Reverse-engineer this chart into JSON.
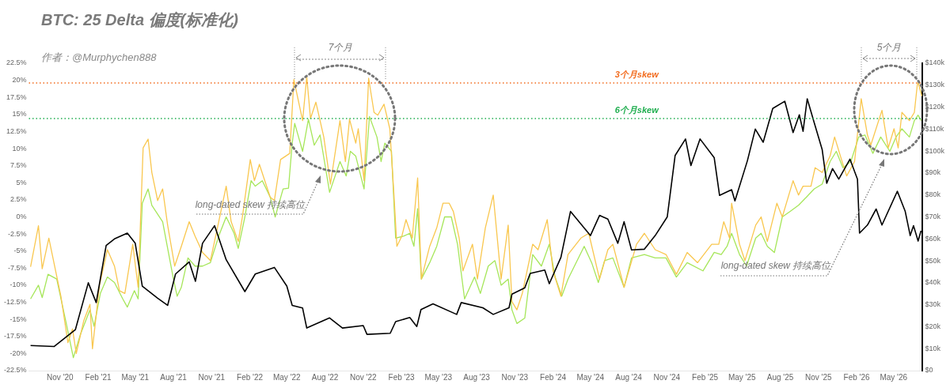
{
  "chart_data": {
    "type": "line",
    "title": "BTC: 25 Delta 偏度(标准化)",
    "subtitle": "作者：@Murphychen888",
    "xlim": [
      "2020-08-18",
      "2026-07-10"
    ],
    "xticks": [
      {
        "value": "2020-11-01",
        "label": "Nov '20"
      },
      {
        "value": "2021-02-01",
        "label": "Feb '21"
      },
      {
        "value": "2021-05-01",
        "label": "May '21"
      },
      {
        "value": "2021-08-01",
        "label": "Aug '21"
      },
      {
        "value": "2021-11-01",
        "label": "Nov '21"
      },
      {
        "value": "2022-02-01",
        "label": "Feb '22"
      },
      {
        "value": "2022-05-01",
        "label": "May '22"
      },
      {
        "value": "2022-08-01",
        "label": "Aug '22"
      },
      {
        "value": "2022-11-01",
        "label": "Nov '22"
      },
      {
        "value": "2023-02-01",
        "label": "Feb '23"
      },
      {
        "value": "2023-05-01",
        "label": "May '23"
      },
      {
        "value": "2023-08-01",
        "label": "Aug '23"
      },
      {
        "value": "2023-11-01",
        "label": "Nov '23"
      },
      {
        "value": "2024-02-01",
        "label": "Feb '24"
      },
      {
        "value": "2024-05-01",
        "label": "May '24"
      },
      {
        "value": "2024-08-01",
        "label": "Aug '24"
      },
      {
        "value": "2024-11-01",
        "label": "Nov '24"
      },
      {
        "value": "2025-02-01",
        "label": "Feb '25"
      },
      {
        "value": "2025-05-01",
        "label": "May '25"
      },
      {
        "value": "2025-08-01",
        "label": "Aug '25"
      },
      {
        "value": "2025-11-01",
        "label": "Nov '25"
      },
      {
        "value": "2026-02-01",
        "label": "Feb '26"
      },
      {
        "value": "2026-05-01",
        "label": "May '26"
      }
    ],
    "ylim": [
      -22.5,
      22.5
    ],
    "yticks": [
      {
        "value": -22.5,
        "label": "-22.5%"
      },
      {
        "value": -20,
        "label": "-20%"
      },
      {
        "value": -17.5,
        "label": "-17.5%"
      },
      {
        "value": -15,
        "label": "-15%"
      },
      {
        "value": -12.5,
        "label": "-12.5%"
      },
      {
        "value": -10,
        "label": "-10%"
      },
      {
        "value": -7.5,
        "label": "-7.5%"
      },
      {
        "value": -5,
        "label": "-5%"
      },
      {
        "value": -2.5,
        "label": "-2.5%"
      },
      {
        "value": 0,
        "label": "0%"
      },
      {
        "value": 2.5,
        "label": "2.5%"
      },
      {
        "value": 5,
        "label": "5%"
      },
      {
        "value": 7.5,
        "label": "7.5%"
      },
      {
        "value": 10,
        "label": "10%"
      },
      {
        "value": 12.5,
        "label": "12.5%"
      },
      {
        "value": 15,
        "label": "15%"
      },
      {
        "value": 17.5,
        "label": "17.5%"
      },
      {
        "value": 20,
        "label": "20%"
      },
      {
        "value": 22.5,
        "label": "22.5%"
      }
    ],
    "y2lim": [
      0,
      140
    ],
    "y2ticks": [
      {
        "value": 0,
        "label": "$0"
      },
      {
        "value": 10,
        "label": "$10k"
      },
      {
        "value": 20,
        "label": "$20k"
      },
      {
        "value": 30,
        "label": "$30k"
      },
      {
        "value": 40,
        "label": "$40k"
      },
      {
        "value": 50,
        "label": "$50k"
      },
      {
        "value": 60,
        "label": "$60k"
      },
      {
        "value": 70,
        "label": "$70k"
      },
      {
        "value": 80,
        "label": "$80k"
      },
      {
        "value": 90,
        "label": "$90k"
      },
      {
        "value": 100,
        "label": "$100k"
      },
      {
        "value": 110,
        "label": "$110k"
      },
      {
        "value": 120,
        "label": "$120k"
      },
      {
        "value": 130,
        "label": "$130k"
      },
      {
        "value": 140,
        "label": "$140k"
      }
    ],
    "line_style": "solid",
    "series": [
      {
        "color": "#f9c74f",
        "x": [
          "2020-08-22",
          "2020-09-10",
          "2020-09-19",
          "2020-10-05",
          "2020-11-03",
          "2020-11-20",
          "2020-12-01",
          "2020-12-10",
          "2020-12-28",
          "2021-01-12",
          "2021-01-18",
          "2021-02-04",
          "2021-02-23",
          "2021-03-12",
          "2021-03-24",
          "2021-04-06",
          "2021-04-25",
          "2021-05-08",
          "2021-05-20",
          "2021-06-01",
          "2021-06-10",
          "2021-06-24",
          "2021-07-06",
          "2021-07-18",
          "2021-08-04",
          "2021-08-20",
          "2021-09-08",
          "2021-09-22",
          "2021-10-10",
          "2021-10-29",
          "2021-11-18",
          "2021-12-06",
          "2021-12-18",
          "2022-01-04",
          "2022-01-14",
          "2022-02-02",
          "2022-02-12",
          "2022-02-24",
          "2022-03-22",
          "2022-04-01",
          "2022-04-16",
          "2022-05-08",
          "2022-05-18",
          "2022-06-08",
          "2022-06-18",
          "2022-06-27",
          "2022-07-10",
          "2022-07-29",
          "2022-08-14",
          "2022-09-06",
          "2022-09-19",
          "2022-09-29",
          "2022-10-14",
          "2022-10-20",
          "2022-11-03",
          "2022-11-14",
          "2022-11-27",
          "2022-12-06",
          "2022-12-21",
          "2023-01-04",
          "2023-01-14",
          "2023-01-21",
          "2023-02-02",
          "2023-02-12",
          "2023-02-27",
          "2023-03-12",
          "2023-03-21",
          "2023-04-10",
          "2023-04-27",
          "2023-05-12",
          "2023-05-27",
          "2023-06-06",
          "2023-06-20",
          "2023-06-29",
          "2023-07-22",
          "2023-08-03",
          "2023-08-22",
          "2023-09-10",
          "2023-09-29",
          "2023-10-16",
          "2023-10-25",
          "2023-11-06",
          "2023-11-19",
          "2023-12-14",
          "2023-12-27",
          "2024-01-18",
          "2024-02-01",
          "2024-02-20",
          "2024-03-08",
          "2024-04-08",
          "2024-04-27",
          "2024-05-23",
          "2024-06-12",
          "2024-06-24",
          "2024-07-21",
          "2024-08-20",
          "2024-09-08",
          "2024-10-04",
          "2024-10-30",
          "2024-11-24",
          "2024-12-20",
          "2025-01-14",
          "2025-02-17",
          "2025-03-06",
          "2025-03-18",
          "2025-04-01",
          "2025-04-06",
          "2025-04-25",
          "2025-05-08",
          "2025-06-03",
          "2025-06-16",
          "2025-07-01",
          "2025-07-24",
          "2025-08-06",
          "2025-09-01",
          "2025-09-14",
          "2025-09-25",
          "2025-10-14",
          "2025-10-24",
          "2025-11-10",
          "2025-11-29",
          "2025-12-10",
          "2025-12-24",
          "2026-01-08",
          "2026-01-27",
          "2026-02-12",
          "2026-02-27",
          "2026-03-07",
          "2026-04-03",
          "2026-04-18",
          "2026-05-02",
          "2026-05-12",
          "2026-05-21",
          "2026-06-08",
          "2026-06-20",
          "2026-06-27",
          "2026-06-29",
          "2026-07-08"
        ],
        "values": [
          -7.3,
          -1.3,
          -7.6,
          -3.1,
          -11.6,
          -18.4,
          -16.4,
          -20,
          -15.2,
          -12.8,
          -19.3,
          -10,
          -4.8,
          -7.2,
          -10.8,
          -11.2,
          -4,
          -10.3,
          10.1,
          11.4,
          6.5,
          2.4,
          4.1,
          -1.2,
          -7.2,
          -4.3,
          -0.7,
          -2.8,
          -5.2,
          -6.4,
          -0.7,
          4.5,
          -0.7,
          -3.6,
          0,
          8.4,
          5.3,
          7.7,
          2.9,
          2.4,
          8.4,
          9.3,
          20.1,
          14.1,
          20.5,
          14.4,
          16.8,
          11.7,
          4.8,
          14.1,
          8.1,
          14.3,
          10.8,
          12.9,
          5.3,
          20.3,
          15.3,
          14.9,
          16.5,
          12.9,
          3.2,
          -4.3,
          -2.8,
          -0.4,
          -3.1,
          5.7,
          -9.1,
          -4.3,
          -1.6,
          2,
          2,
          0.8,
          -3.1,
          -7.9,
          -4,
          -9.1,
          -1.6,
          3.2,
          -9.1,
          -1.2,
          -12.4,
          -13.6,
          -11.2,
          -4,
          -4.8,
          -0.4,
          -7.9,
          -11.6,
          -5.5,
          -3.1,
          -2.4,
          -9.1,
          -4.8,
          -4,
          -10.3,
          -4,
          -2.4,
          -4.8,
          -5.5,
          -8.4,
          -5.2,
          -6.7,
          -4,
          -4,
          -0.7,
          -3.1,
          2,
          -4,
          -6.4,
          -1.2,
          0,
          -3.6,
          2,
          0,
          5.3,
          3.2,
          4.5,
          4.5,
          7.2,
          6.5,
          8.9,
          11.7,
          8.9,
          6,
          8.1,
          17.3,
          12,
          10.5,
          15.6,
          10.1,
          12.9,
          10.1,
          15.3,
          14.1,
          15.3,
          19.3,
          19.7,
          17.7
        ]
      },
      {
        "color": "#a6e65a",
        "x": [
          "2020-08-22",
          "2020-09-10",
          "2020-09-19",
          "2020-10-03",
          "2020-10-24",
          "2020-11-16",
          "2020-12-03",
          "2020-12-20",
          "2021-01-12",
          "2021-01-22",
          "2021-02-06",
          "2021-02-23",
          "2021-03-12",
          "2021-04-01",
          "2021-04-12",
          "2021-04-29",
          "2021-05-08",
          "2021-05-18",
          "2021-06-01",
          "2021-06-10",
          "2021-07-06",
          "2021-08-01",
          "2021-08-10",
          "2021-08-20",
          "2021-09-05",
          "2021-09-22",
          "2021-10-10",
          "2021-10-29",
          "2021-11-18",
          "2021-12-06",
          "2021-12-25",
          "2022-01-04",
          "2022-01-20",
          "2022-02-04",
          "2022-02-14",
          "2022-03-03",
          "2022-03-22",
          "2022-04-03",
          "2022-04-22",
          "2022-05-05",
          "2022-05-14",
          "2022-05-20",
          "2022-06-08",
          "2022-06-22",
          "2022-07-06",
          "2022-07-20",
          "2022-08-12",
          "2022-09-06",
          "2022-09-21",
          "2022-10-01",
          "2022-10-14",
          "2022-11-03",
          "2022-11-16",
          "2022-12-04",
          "2022-12-14",
          "2022-12-23",
          "2023-01-08",
          "2023-01-18",
          "2023-02-07",
          "2023-02-21",
          "2023-03-03",
          "2023-03-12",
          "2023-03-21",
          "2023-04-10",
          "2023-04-27",
          "2023-05-16",
          "2023-06-01",
          "2023-06-16",
          "2023-07-03",
          "2023-07-27",
          "2023-08-10",
          "2023-08-29",
          "2023-09-14",
          "2023-09-29",
          "2023-10-16",
          "2023-10-25",
          "2023-11-06",
          "2023-11-25",
          "2023-12-14",
          "2024-01-04",
          "2024-01-23",
          "2024-02-06",
          "2024-02-22",
          "2024-03-08",
          "2024-04-16",
          "2024-05-04",
          "2024-05-20",
          "2024-06-04",
          "2024-06-24",
          "2024-07-21",
          "2024-08-08",
          "2024-09-08",
          "2024-10-04",
          "2024-10-30",
          "2024-11-24",
          "2024-12-20",
          "2025-01-27",
          "2025-02-23",
          "2025-03-12",
          "2025-03-26",
          "2025-04-06",
          "2025-04-25",
          "2025-05-12",
          "2025-06-03",
          "2025-06-16",
          "2025-07-01",
          "2025-07-18",
          "2025-08-06",
          "2025-08-25",
          "2025-09-14",
          "2025-10-03",
          "2025-10-22",
          "2025-11-10",
          "2025-11-29",
          "2025-12-14",
          "2025-12-30",
          "2026-01-18",
          "2026-02-06",
          "2026-02-21",
          "2026-03-12",
          "2026-03-31",
          "2026-04-22",
          "2026-05-07",
          "2026-05-21",
          "2026-06-08",
          "2026-06-20",
          "2026-06-29",
          "2026-07-06"
        ],
        "values": [
          -12,
          -10,
          -11.8,
          -8.4,
          -9.1,
          -15.6,
          -20.6,
          -17.2,
          -13.6,
          -16,
          -11.2,
          -8.8,
          -9.6,
          -12,
          -13.2,
          -10.8,
          -12,
          2,
          4.1,
          1.7,
          -0.7,
          -9.1,
          -11.6,
          -10.3,
          -6,
          -7.2,
          -7.2,
          -6.7,
          -2.8,
          0,
          -2.4,
          -4.6,
          0,
          5.3,
          4.5,
          5.3,
          2.9,
          0,
          4.1,
          4.2,
          10.8,
          13.7,
          9.6,
          14.3,
          10.5,
          12,
          3.6,
          8.1,
          6,
          9.6,
          8.9,
          4.1,
          14.7,
          11.7,
          8.1,
          10.8,
          9.6,
          -3.1,
          -2.8,
          -2.4,
          -4.3,
          1.2,
          -9.1,
          -6.7,
          -4.3,
          0,
          0,
          -4,
          -12,
          -8.8,
          -11.2,
          -7.2,
          -6.4,
          -10,
          -9.1,
          -13.6,
          -15.6,
          -14.8,
          -5.5,
          -7.2,
          -4,
          -8.8,
          -11.6,
          -9.1,
          -4.3,
          -6.7,
          -9.6,
          -6.4,
          -6,
          -10.3,
          -6,
          -5.5,
          -6,
          -6,
          -8.8,
          -6.7,
          -7.9,
          -5.2,
          -5.5,
          -4.3,
          -2.4,
          -5.5,
          -7.2,
          -3.1,
          -2.4,
          -4.3,
          -5.2,
          0,
          0.8,
          1.7,
          2.9,
          4.1,
          4.8,
          8.1,
          9.6,
          7.2,
          8.1,
          11.7,
          12,
          9.3,
          11.7,
          9.6,
          11.7,
          12.9,
          11.7,
          14.1,
          14.9,
          14.1
        ]
      },
      {
        "color": "#000000",
        "axis": "y2",
        "x": [
          "2020-08-22",
          "2020-10-18",
          "2020-12-08",
          "2021-01-08",
          "2021-01-27",
          "2021-02-20",
          "2021-03-12",
          "2021-04-12",
          "2021-05-01",
          "2021-05-18",
          "2021-06-24",
          "2021-07-18",
          "2021-08-06",
          "2021-09-08",
          "2021-09-23",
          "2021-10-10",
          "2021-11-08",
          "2021-12-06",
          "2022-01-20",
          "2022-02-14",
          "2022-04-01",
          "2022-05-01",
          "2022-05-14",
          "2022-06-08",
          "2022-06-18",
          "2022-08-12",
          "2022-09-12",
          "2022-11-01",
          "2022-11-10",
          "2023-01-05",
          "2023-01-18",
          "2023-02-21",
          "2023-03-10",
          "2023-03-20",
          "2023-04-18",
          "2023-06-14",
          "2023-06-25",
          "2023-08-16",
          "2023-09-10",
          "2023-10-18",
          "2023-10-25",
          "2023-11-25",
          "2023-12-08",
          "2024-01-12",
          "2024-01-23",
          "2024-02-20",
          "2024-03-14",
          "2024-04-16",
          "2024-05-01",
          "2024-05-23",
          "2024-06-12",
          "2024-07-06",
          "2024-07-21",
          "2024-08-08",
          "2024-09-08",
          "2024-10-04",
          "2024-11-02",
          "2024-11-21",
          "2024-12-16",
          "2024-12-29",
          "2025-01-20",
          "2025-02-23",
          "2025-03-08",
          "2025-04-06",
          "2025-04-14",
          "2025-05-14",
          "2025-06-02",
          "2025-06-21",
          "2025-07-14",
          "2025-08-12",
          "2025-09-01",
          "2025-09-16",
          "2025-09-25",
          "2025-10-05",
          "2025-10-22",
          "2025-11-10",
          "2025-11-21",
          "2025-12-05",
          "2025-12-20",
          "2026-01-16",
          "2026-02-03",
          "2026-02-08",
          "2026-02-27",
          "2026-03-20",
          "2026-04-03",
          "2026-05-10",
          "2026-05-29",
          "2026-06-10",
          "2026-06-18",
          "2026-06-29",
          "2026-07-06"
        ],
        "values": [
          11.4,
          11,
          18.7,
          40,
          31,
          57,
          60,
          62.6,
          58,
          38.5,
          33,
          29.7,
          44,
          49.5,
          40.7,
          58,
          66,
          50.5,
          36,
          44,
          47,
          38.5,
          29.7,
          28.5,
          19.4,
          24,
          19.4,
          20.5,
          16.5,
          17,
          22.3,
          24.2,
          20.1,
          27.8,
          30.4,
          25.6,
          31,
          28.6,
          25.6,
          28.6,
          34.8,
          37.7,
          44.3,
          45.8,
          39.6,
          51.6,
          72.5,
          65,
          61.5,
          70.7,
          69,
          58,
          67.8,
          55,
          55.3,
          61.5,
          70,
          98,
          105.5,
          93.4,
          105.5,
          97,
          79.8,
          82.4,
          77.3,
          95.6,
          110,
          104,
          119.4,
          122.7,
          108.4,
          116.5,
          109,
          123.8,
          112.8,
          100.7,
          85.3,
          92,
          87.2,
          96.3,
          87.2,
          62.6,
          66.3,
          73.6,
          66.3,
          81.7,
          72.5,
          61.5,
          66,
          59,
          63.7
        ]
      }
    ],
    "ref_lines": [
      {
        "axis": "y",
        "value": 19.6,
        "label": "3个月skew",
        "color": "#f26b1d",
        "line_style": "dotted"
      },
      {
        "axis": "y",
        "value": 14.4,
        "label": "6个月skew",
        "color": "#1fae4f",
        "line_style": "dotted"
      }
    ],
    "annotations": [
      "7个月",
      "5个月",
      "long-dated skew 持续高位",
      "long-dated skew 持续高位"
    ]
  }
}
